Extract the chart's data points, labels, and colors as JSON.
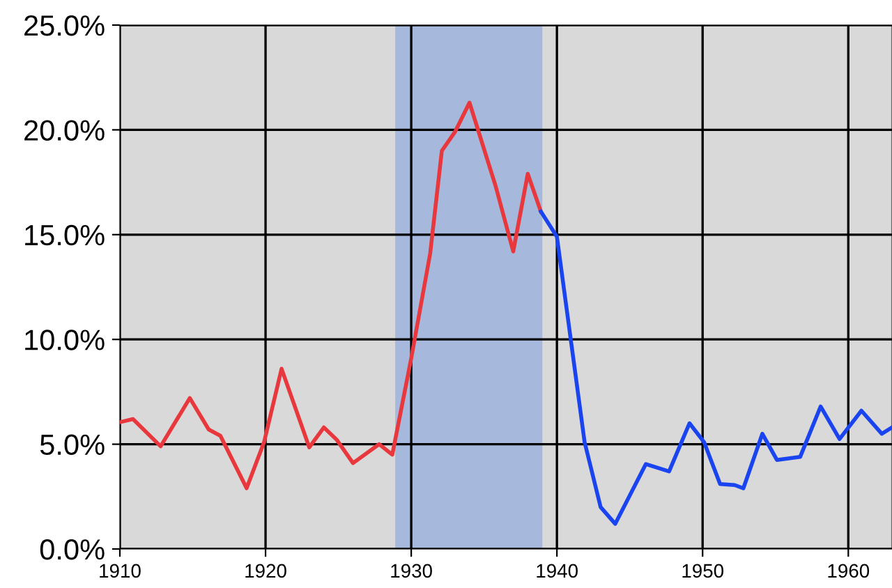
{
  "chart_data": {
    "type": "line",
    "series": [
      {
        "color": "#e8383d",
        "x": [
          1910,
          1910.9,
          1912.8,
          1914.8,
          1916.1,
          1916.9,
          1918.7,
          1919.9,
          1921.1,
          1923.0,
          1924.0,
          1924.9,
          1926.0,
          1927.8,
          1928.7,
          1930.0,
          1931.3,
          1932.1,
          1933.0,
          1934.0,
          1935.8,
          1937.0,
          1938.0,
          1938.9
        ],
        "values": [
          6.05,
          6.2,
          4.9,
          7.2,
          5.7,
          5.4,
          2.9,
          5.1,
          8.6,
          4.85,
          5.8,
          5.2,
          4.1,
          5.0,
          4.5,
          9.1,
          14.1,
          19.0,
          19.9,
          21.3,
          17.3,
          14.2,
          17.9,
          16.1
        ]
      },
      {
        "color": "#1a44f0",
        "x": [
          1938.9,
          1940.0,
          1941.9,
          1943.0,
          1944.0,
          1946.1,
          1947.7,
          1949.1,
          1950.1,
          1951.2,
          1952.2,
          1952.8,
          1954.1,
          1955.1,
          1956.7,
          1958.1,
          1959.4,
          1960.9,
          1962.3,
          1963.0
        ],
        "values": [
          16.1,
          14.9,
          5.1,
          2.0,
          1.2,
          4.05,
          3.7,
          6.0,
          5.1,
          3.1,
          3.05,
          2.9,
          5.5,
          4.25,
          4.4,
          6.8,
          5.25,
          6.6,
          5.5,
          5.8
        ]
      }
    ],
    "bands": [
      {
        "axis": "x",
        "from": 1928.9,
        "to": 1939.0,
        "color": "#a6b8dc"
      }
    ],
    "xlim": [
      1910,
      1963
    ],
    "xticks": [
      1910,
      1920,
      1930,
      1940,
      1950,
      1960
    ],
    "ylim": [
      0,
      25
    ],
    "yticks": [
      {
        "value": 0,
        "label": "0.0%"
      },
      {
        "value": 5,
        "label": "5.0%"
      },
      {
        "value": 10,
        "label": "10.0%"
      },
      {
        "value": 15,
        "label": "15.0%"
      },
      {
        "value": 20,
        "label": "20.0%"
      },
      {
        "value": 25,
        "label": "25.0%"
      }
    ],
    "grid": true,
    "marker": "none",
    "line_style": "solid"
  }
}
